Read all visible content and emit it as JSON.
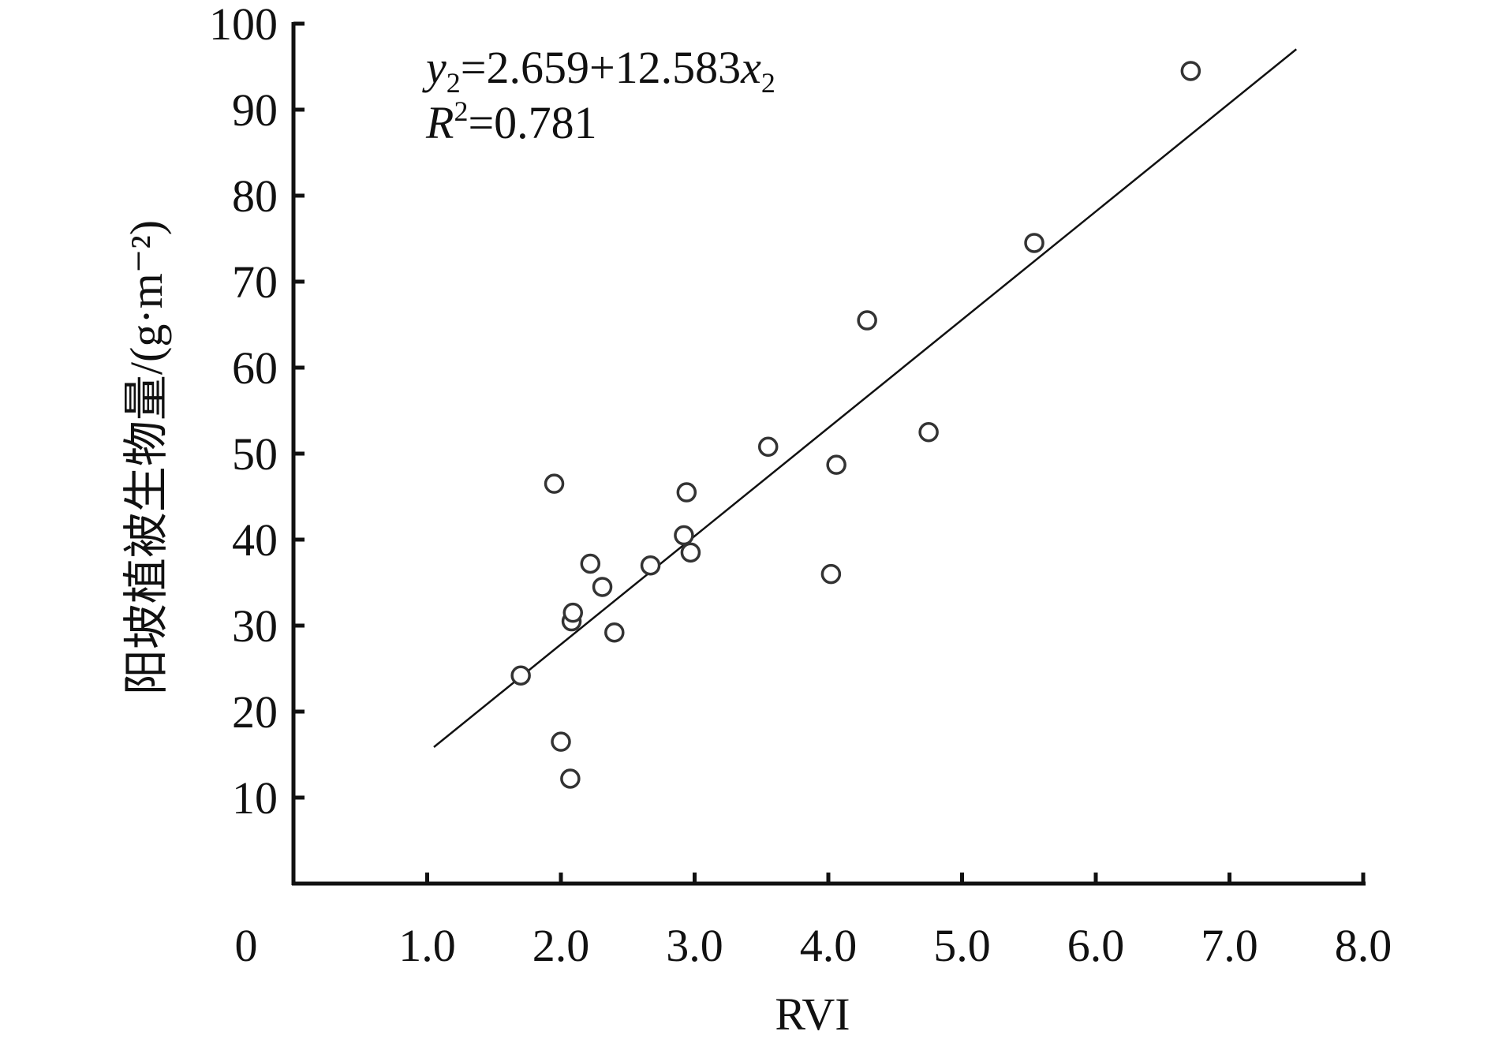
{
  "chart_data": {
    "type": "scatter",
    "title": "",
    "xlabel": "RVI",
    "ylabel": "阳坡植被生物量/(g·m⁻²)",
    "xlim": [
      0,
      8.0
    ],
    "ylim": [
      0,
      100
    ],
    "x_ticks": [
      1.0,
      2.0,
      3.0,
      4.0,
      5.0,
      6.0,
      7.0,
      8.0
    ],
    "x_tick_labels": [
      "1.0",
      "2.0",
      "3.0",
      "4.0",
      "5.0",
      "6.0",
      "7.0",
      "8.0"
    ],
    "y_ticks": [
      10,
      20,
      30,
      40,
      50,
      60,
      70,
      80,
      90,
      100
    ],
    "y_tick_labels": [
      "10",
      "20",
      "30",
      "40",
      "50",
      "60",
      "70",
      "80",
      "90",
      "100"
    ],
    "origin_label": "0",
    "grid": false,
    "legend": "none",
    "marker": "open-circle",
    "points": [
      {
        "x": 1.7,
        "y": 24.2
      },
      {
        "x": 1.95,
        "y": 46.5
      },
      {
        "x": 2.0,
        "y": 16.5
      },
      {
        "x": 2.07,
        "y": 12.2
      },
      {
        "x": 2.08,
        "y": 30.5
      },
      {
        "x": 2.09,
        "y": 31.5
      },
      {
        "x": 2.22,
        "y": 37.2
      },
      {
        "x": 2.31,
        "y": 34.5
      },
      {
        "x": 2.4,
        "y": 29.2
      },
      {
        "x": 2.67,
        "y": 37.0
      },
      {
        "x": 2.92,
        "y": 40.5
      },
      {
        "x": 2.94,
        "y": 45.5
      },
      {
        "x": 2.97,
        "y": 38.5
      },
      {
        "x": 3.55,
        "y": 50.8
      },
      {
        "x": 4.02,
        "y": 36.0
      },
      {
        "x": 4.06,
        "y": 48.7
      },
      {
        "x": 4.29,
        "y": 65.5
      },
      {
        "x": 4.75,
        "y": 52.5
      },
      {
        "x": 5.54,
        "y": 74.5
      },
      {
        "x": 6.71,
        "y": 94.5
      }
    ],
    "fit_line": {
      "intercept": 2.659,
      "slope": 12.583,
      "x_range": [
        1.05,
        7.5
      ]
    },
    "annotations": {
      "equation": {
        "y": "y",
        "y_sub": "2",
        "rhs": "=2.659+12.583",
        "x": "x",
        "x_sub": "2"
      },
      "r_squared": {
        "r": "R",
        "sup": "2",
        "rhs": "=0.781"
      }
    },
    "colors": {
      "axis": "#111111",
      "marker_stroke": "#333333",
      "fit_line": "#111111"
    }
  }
}
